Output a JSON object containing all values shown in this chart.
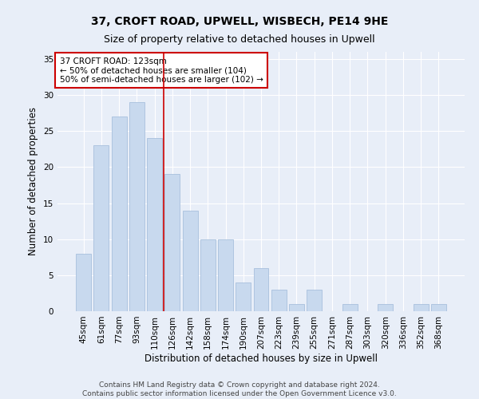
{
  "title1": "37, CROFT ROAD, UPWELL, WISBECH, PE14 9HE",
  "title2": "Size of property relative to detached houses in Upwell",
  "xlabel": "Distribution of detached houses by size in Upwell",
  "ylabel": "Number of detached properties",
  "categories": [
    "45sqm",
    "61sqm",
    "77sqm",
    "93sqm",
    "110sqm",
    "126sqm",
    "142sqm",
    "158sqm",
    "174sqm",
    "190sqm",
    "207sqm",
    "223sqm",
    "239sqm",
    "255sqm",
    "271sqm",
    "287sqm",
    "303sqm",
    "320sqm",
    "336sqm",
    "352sqm",
    "368sqm"
  ],
  "values": [
    8,
    23,
    27,
    29,
    24,
    19,
    14,
    10,
    10,
    4,
    6,
    3,
    1,
    3,
    0,
    1,
    0,
    1,
    0,
    1,
    1
  ],
  "bar_color": "#c8d9ee",
  "bar_edge_color": "#a8c0dd",
  "background_color": "#e8eef8",
  "grid_color": "#ffffff",
  "vline_index": 5,
  "vline_color": "#cc0000",
  "annotation_title": "37 CROFT ROAD: 123sqm",
  "annotation_line2": "← 50% of detached houses are smaller (104)",
  "annotation_line3": "50% of semi-detached houses are larger (102) →",
  "annotation_box_color": "#ffffff",
  "annotation_box_edge": "#cc0000",
  "ylim": [
    0,
    36
  ],
  "yticks": [
    0,
    5,
    10,
    15,
    20,
    25,
    30,
    35
  ],
  "footer": "Contains HM Land Registry data © Crown copyright and database right 2024.\nContains public sector information licensed under the Open Government Licence v3.0.",
  "title_fontsize": 10,
  "subtitle_fontsize": 9,
  "axis_label_fontsize": 8.5,
  "tick_fontsize": 7.5,
  "annotation_fontsize": 7.5,
  "footer_fontsize": 6.5
}
